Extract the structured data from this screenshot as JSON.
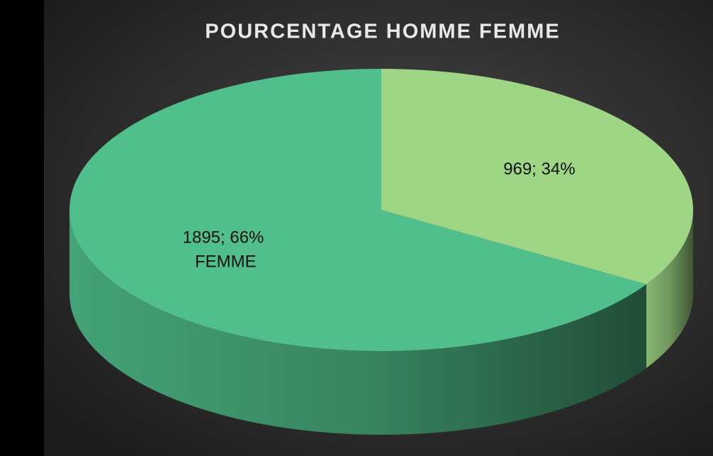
{
  "chart_data": {
    "type": "pie",
    "title": "POURCENTAGE HOMME FEMME",
    "categories": [
      null,
      "FEMME"
    ],
    "values": [
      969,
      1895
    ],
    "value_labels": [
      "969; 34%",
      "1895; 66%"
    ],
    "colors": [
      "#9fd686",
      "#50bf8b"
    ]
  }
}
